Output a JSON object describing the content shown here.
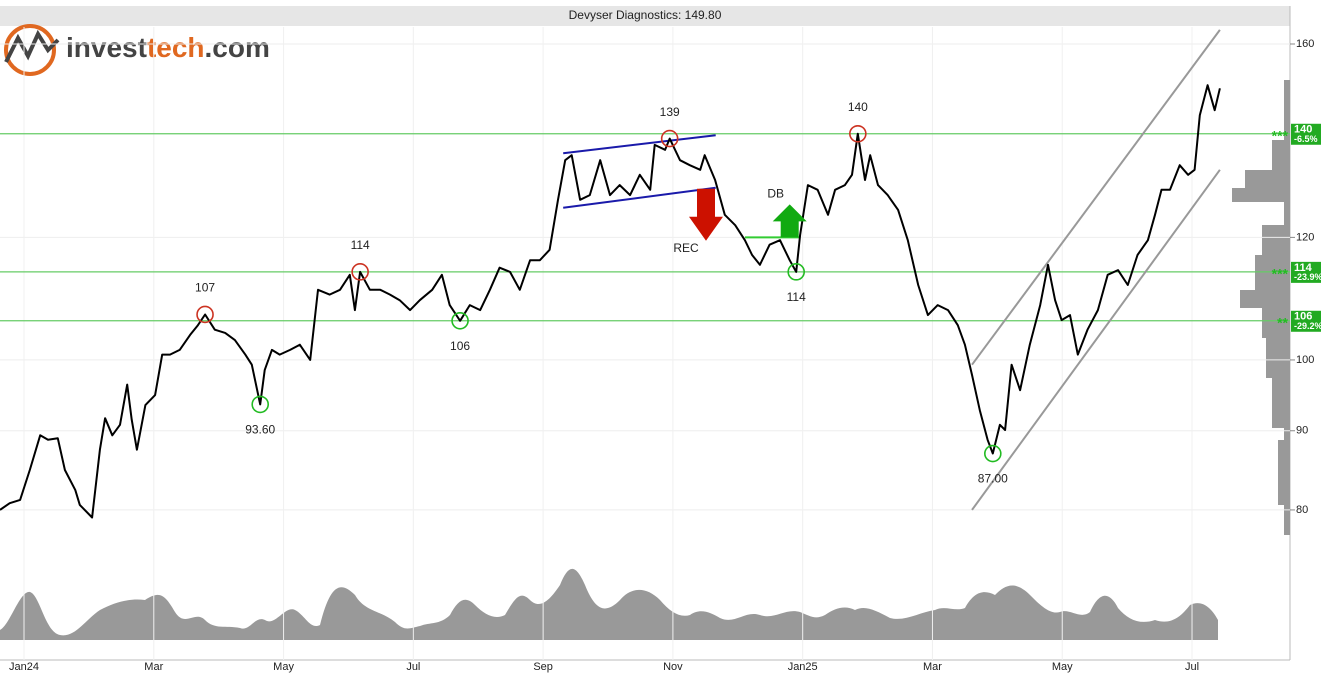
{
  "chart_data": {
    "type": "line",
    "title": "Devyser Diagnostics: 149.80",
    "color": "#000000",
    "log_scale": true,
    "grid": true,
    "x": [
      -0.37,
      -0.22,
      -0.06,
      0.09,
      0.25,
      0.37,
      0.52,
      0.63,
      0.79,
      0.86,
      1.05,
      1.17,
      1.25,
      1.36,
      1.48,
      1.59,
      1.66,
      1.74,
      1.87,
      2.02,
      2.13,
      2.25,
      2.4,
      2.56,
      2.68,
      2.79,
      2.94,
      3.1,
      3.25,
      3.41,
      3.51,
      3.64,
      3.71,
      3.82,
      3.94,
      4.1,
      4.25,
      4.41,
      4.53,
      4.71,
      4.87,
      5.02,
      5.1,
      5.18,
      5.33,
      5.49,
      5.64,
      5.79,
      5.95,
      6.1,
      6.29,
      6.44,
      6.56,
      6.72,
      6.87,
      7.03,
      7.18,
      7.33,
      7.49,
      7.64,
      7.8,
      7.95,
      8.1,
      8.23,
      8.34,
      8.44,
      8.57,
      8.72,
      8.88,
      9.03,
      9.18,
      9.34,
      9.49,
      9.65,
      9.72,
      9.88,
      9.95,
      10.11,
      10.26,
      10.42,
      10.49,
      10.65,
      10.8,
      10.96,
      11.11,
      11.22,
      11.34,
      11.49,
      11.65,
      11.8,
      11.9,
      11.96,
      12.08,
      12.23,
      12.39,
      12.5,
      12.65,
      12.76,
      12.85,
      12.96,
      13.04,
      13.16,
      13.31,
      13.47,
      13.62,
      13.78,
      13.93,
      14.08,
      14.24,
      14.39,
      14.5,
      14.61,
      14.73,
      14.85,
      14.93,
      15.04,
      15.12,
      15.22,
      15.35,
      15.5,
      15.66,
      15.78,
      15.89,
      15.99,
      16.12,
      16.24,
      16.39,
      16.55,
      16.7,
      16.86,
      17.01,
      17.16,
      17.32,
      17.43,
      17.53,
      17.66,
      17.81,
      17.94,
      18.04,
      18.12,
      18.24,
      18.35,
      18.43
    ],
    "values": [
      80.0,
      80.8,
      81.2,
      84.9,
      89.4,
      88.8,
      89.0,
      84.9,
      82.4,
      80.6,
      79.1,
      87.5,
      91.7,
      89.4,
      90.8,
      96.4,
      91.5,
      87.5,
      93.5,
      94.9,
      100.8,
      100.8,
      101.5,
      103.8,
      105.3,
      107,
      104.6,
      104.1,
      103.0,
      100.8,
      99.3,
      93.6,
      98.5,
      101.5,
      100.8,
      101.5,
      102.3,
      100.0,
      111.0,
      110.2,
      111.0,
      113.5,
      107.7,
      114,
      111.0,
      111.0,
      110.2,
      109.3,
      107.7,
      109.3,
      111.0,
      113.5,
      108.5,
      106,
      108.5,
      107.7,
      111.0,
      114.7,
      114.0,
      111.0,
      116.0,
      116.0,
      117.8,
      126.9,
      134.6,
      135.6,
      126.9,
      127.8,
      134.6,
      127.8,
      129.7,
      127.8,
      131.7,
      128.8,
      137.7,
      136.7,
      139,
      134.6,
      133.6,
      132.7,
      135.6,
      130.7,
      124.1,
      122.2,
      119.5,
      116.9,
      115.2,
      118.7,
      119.5,
      116.0,
      114,
      120.4,
      129.7,
      128.8,
      124.1,
      128.8,
      129.7,
      131.7,
      140,
      130.7,
      135.6,
      129.7,
      127.8,
      125.0,
      119.5,
      111.8,
      106.9,
      108.5,
      107.7,
      105.3,
      102.3,
      97.8,
      92.8,
      88.8,
      87,
      90.8,
      90.1,
      99.3,
      95.6,
      102.3,
      108.5,
      115.2,
      109.3,
      106.1,
      106.9,
      100.8,
      104.6,
      107.7,
      113.5,
      114.3,
      111.8,
      116.9,
      119.5,
      124.1,
      128.8,
      128.8,
      133.6,
      131.7,
      132.7,
      143.9,
      150.5,
      145.0,
      149.8
    ],
    "xlim": [
      -0.37,
      19.51
    ],
    "xticks": [
      {
        "value": 0,
        "label": "Jan24"
      },
      {
        "value": 2,
        "label": "Mar"
      },
      {
        "value": 4,
        "label": "May"
      },
      {
        "value": 6,
        "label": "Jul"
      },
      {
        "value": 8,
        "label": "Sep"
      },
      {
        "value": 10,
        "label": "Nov"
      },
      {
        "value": 12,
        "label": "Jan25"
      },
      {
        "value": 14,
        "label": "Mar"
      },
      {
        "value": 16,
        "label": "May"
      },
      {
        "value": 18,
        "label": "Jul"
      }
    ],
    "ylim": [
      76.5,
      164.1
    ],
    "yticks": [
      80,
      90,
      100,
      120,
      160
    ],
    "level_color": "#66cc66",
    "levels": [
      {
        "value": 140,
        "stars": "***",
        "change": "-6.5%"
      },
      {
        "value": 114,
        "stars": "***",
        "change": "-23.9%"
      },
      {
        "value": 106,
        "stars": "**",
        "change": "-29.2%"
      }
    ],
    "top_color": "#cc3322",
    "bottom_color": "#22bb22",
    "extremes": [
      {
        "x": 2.79,
        "value": 107,
        "kind": "top"
      },
      {
        "x": 3.64,
        "value": 93.6,
        "value_label": "93.60",
        "kind": "bottom"
      },
      {
        "x": 5.18,
        "value": 114,
        "kind": "top"
      },
      {
        "x": 6.72,
        "value": 106,
        "kind": "bottom"
      },
      {
        "x": 9.95,
        "value": 139,
        "kind": "top"
      },
      {
        "x": 11.9,
        "value": 114,
        "kind": "bottom"
      },
      {
        "x": 12.85,
        "value": 140,
        "kind": "top"
      },
      {
        "x": 14.93,
        "value": 87,
        "value_label": "87.00",
        "kind": "bottom"
      }
    ],
    "pattern_color": "#1a1aaa",
    "pattern_lines": [
      {
        "x": [
          8.31,
          10.66
        ],
        "values": [
          136.0,
          139.7
        ]
      },
      {
        "x": [
          8.31,
          10.66
        ],
        "values": [
          125.4,
          129.2
        ]
      }
    ],
    "channel_color": "#999999",
    "channel_lines": [
      {
        "x": [
          14.61,
          18.43
        ],
        "values": [
          99.3,
          163.4
        ]
      },
      {
        "x": [
          14.61,
          18.43
        ],
        "values": [
          80.0,
          132.7
        ]
      }
    ],
    "signals": [
      {
        "label": "REC",
        "x": 10.51,
        "value": 129,
        "direction": "down",
        "color": "#cc1100"
      },
      {
        "label": "DB",
        "x": 11.8,
        "value": 120,
        "direction": "up",
        "color": "#11aa11"
      }
    ],
    "db_line": {
      "x": [
        11.11,
        11.96
      ],
      "value": 120
    }
  },
  "logo": {
    "part1": "invest",
    "part2": "tech",
    "part3": ".com"
  }
}
